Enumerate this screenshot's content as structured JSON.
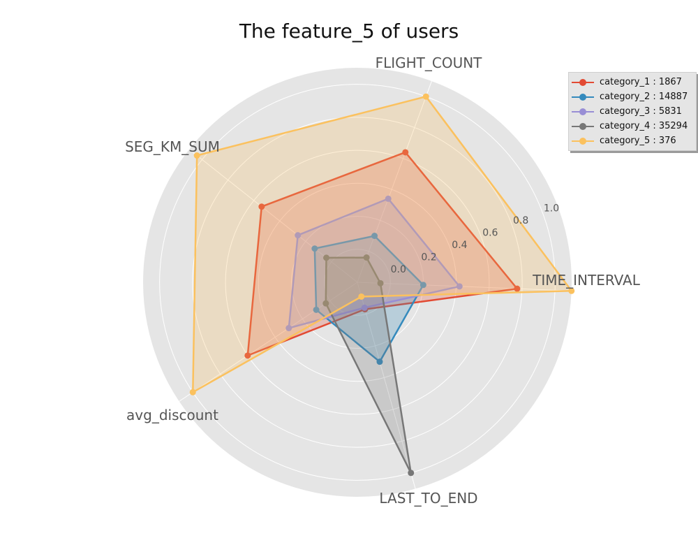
{
  "chart_data": {
    "type": "radar",
    "title": "The feature_5 of users",
    "axes": [
      "TIME_INTERVAL",
      "FLIGHT_COUNT",
      "SEG_KM_SUM",
      "avg_discount",
      "LAST_TO_END"
    ],
    "rlim": [
      -0.2,
      1.1
    ],
    "ticks": [
      0.0,
      0.2,
      0.4,
      0.6,
      0.8,
      1.0
    ],
    "tick_labels": [
      "0.0",
      "0.2",
      "0.4",
      "0.6",
      "0.8",
      "1.0"
    ],
    "grid": true,
    "legend_position": "upper-right outside",
    "series": [
      {
        "name": "category_1 : 1867",
        "color": "#e24a33",
        "values": [
          0.77,
          0.64,
          0.54,
          0.6,
          -0.03
        ]
      },
      {
        "name": "category_2 : 14887",
        "color": "#348abd",
        "values": [
          0.2,
          0.1,
          0.13,
          0.1,
          0.3
        ]
      },
      {
        "name": "category_3 : 5831",
        "color": "#988ed5",
        "values": [
          0.42,
          0.34,
          0.26,
          0.3,
          -0.04
        ]
      },
      {
        "name": "category_4 : 35294",
        "color": "#777777",
        "values": [
          -0.06,
          -0.04,
          0.04,
          0.03,
          1.0
        ]
      },
      {
        "name": "category_5 : 376",
        "color": "#fbc15e",
        "values": [
          1.1,
          1.0,
          1.04,
          1.0,
          -0.11
        ]
      }
    ]
  }
}
